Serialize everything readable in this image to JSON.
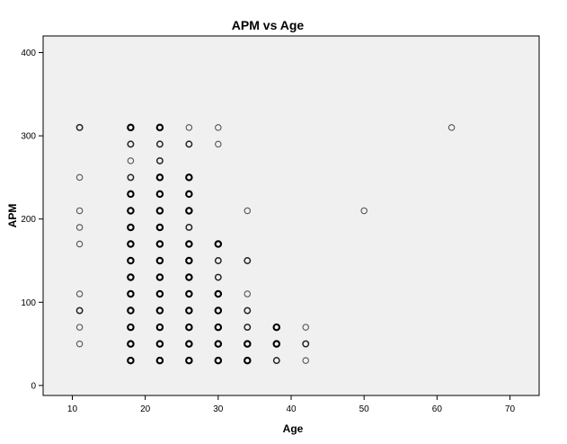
{
  "chart_data": {
    "type": "scatter",
    "title": "APM vs Age",
    "xlabel": "Age",
    "ylabel": "APM",
    "xlim": [
      6,
      74
    ],
    "ylim": [
      -12,
      420
    ],
    "xticks": [
      10,
      20,
      30,
      40,
      50,
      60,
      70
    ],
    "yticks": [
      0,
      100,
      200,
      300,
      400
    ],
    "grid": false,
    "legend": "none",
    "marker": "open-circle",
    "background": "#f0f0f0",
    "marker_color": "#000000",
    "points": [
      {
        "x": 11,
        "y": 310,
        "w": 2
      },
      {
        "x": 11,
        "y": 250,
        "w": 1
      },
      {
        "x": 11,
        "y": 210,
        "w": 1
      },
      {
        "x": 11,
        "y": 190,
        "w": 1
      },
      {
        "x": 11,
        "y": 170,
        "w": 1
      },
      {
        "x": 11,
        "y": 110,
        "w": 1
      },
      {
        "x": 11,
        "y": 90,
        "w": 2
      },
      {
        "x": 11,
        "y": 70,
        "w": 1
      },
      {
        "x": 11,
        "y": 50,
        "w": 1
      },
      {
        "x": 18,
        "y": 310,
        "w": 3
      },
      {
        "x": 18,
        "y": 290,
        "w": 2
      },
      {
        "x": 18,
        "y": 270,
        "w": 1
      },
      {
        "x": 18,
        "y": 250,
        "w": 2
      },
      {
        "x": 18,
        "y": 230,
        "w": 3
      },
      {
        "x": 18,
        "y": 210,
        "w": 3
      },
      {
        "x": 18,
        "y": 190,
        "w": 3
      },
      {
        "x": 18,
        "y": 170,
        "w": 3
      },
      {
        "x": 18,
        "y": 150,
        "w": 3
      },
      {
        "x": 18,
        "y": 130,
        "w": 3
      },
      {
        "x": 18,
        "y": 110,
        "w": 3
      },
      {
        "x": 18,
        "y": 90,
        "w": 3
      },
      {
        "x": 18,
        "y": 70,
        "w": 3
      },
      {
        "x": 18,
        "y": 50,
        "w": 3
      },
      {
        "x": 18,
        "y": 30,
        "w": 3
      },
      {
        "x": 22,
        "y": 310,
        "w": 3
      },
      {
        "x": 22,
        "y": 290,
        "w": 2
      },
      {
        "x": 22,
        "y": 270,
        "w": 2
      },
      {
        "x": 22,
        "y": 250,
        "w": 3
      },
      {
        "x": 22,
        "y": 230,
        "w": 3
      },
      {
        "x": 22,
        "y": 210,
        "w": 3
      },
      {
        "x": 22,
        "y": 190,
        "w": 3
      },
      {
        "x": 22,
        "y": 170,
        "w": 3
      },
      {
        "x": 22,
        "y": 150,
        "w": 3
      },
      {
        "x": 22,
        "y": 130,
        "w": 3
      },
      {
        "x": 22,
        "y": 110,
        "w": 3
      },
      {
        "x": 22,
        "y": 90,
        "w": 3
      },
      {
        "x": 22,
        "y": 70,
        "w": 3
      },
      {
        "x": 22,
        "y": 50,
        "w": 3
      },
      {
        "x": 22,
        "y": 30,
        "w": 3
      },
      {
        "x": 26,
        "y": 310,
        "w": 1
      },
      {
        "x": 26,
        "y": 290,
        "w": 2
      },
      {
        "x": 26,
        "y": 250,
        "w": 3
      },
      {
        "x": 26,
        "y": 230,
        "w": 3
      },
      {
        "x": 26,
        "y": 210,
        "w": 3
      },
      {
        "x": 26,
        "y": 190,
        "w": 2
      },
      {
        "x": 26,
        "y": 170,
        "w": 3
      },
      {
        "x": 26,
        "y": 150,
        "w": 3
      },
      {
        "x": 26,
        "y": 130,
        "w": 3
      },
      {
        "x": 26,
        "y": 110,
        "w": 3
      },
      {
        "x": 26,
        "y": 90,
        "w": 3
      },
      {
        "x": 26,
        "y": 70,
        "w": 3
      },
      {
        "x": 26,
        "y": 50,
        "w": 3
      },
      {
        "x": 26,
        "y": 30,
        "w": 3
      },
      {
        "x": 30,
        "y": 310,
        "w": 1
      },
      {
        "x": 30,
        "y": 290,
        "w": 1
      },
      {
        "x": 30,
        "y": 170,
        "w": 3
      },
      {
        "x": 30,
        "y": 150,
        "w": 2
      },
      {
        "x": 30,
        "y": 130,
        "w": 2
      },
      {
        "x": 30,
        "y": 110,
        "w": 3
      },
      {
        "x": 30,
        "y": 90,
        "w": 3
      },
      {
        "x": 30,
        "y": 70,
        "w": 3
      },
      {
        "x": 30,
        "y": 50,
        "w": 3
      },
      {
        "x": 30,
        "y": 30,
        "w": 3
      },
      {
        "x": 34,
        "y": 210,
        "w": 1
      },
      {
        "x": 34,
        "y": 150,
        "w": 2
      },
      {
        "x": 34,
        "y": 110,
        "w": 1
      },
      {
        "x": 34,
        "y": 90,
        "w": 2
      },
      {
        "x": 34,
        "y": 70,
        "w": 2
      },
      {
        "x": 34,
        "y": 50,
        "w": 3
      },
      {
        "x": 34,
        "y": 30,
        "w": 3
      },
      {
        "x": 38,
        "y": 70,
        "w": 3
      },
      {
        "x": 38,
        "y": 50,
        "w": 3
      },
      {
        "x": 38,
        "y": 30,
        "w": 2
      },
      {
        "x": 42,
        "y": 70,
        "w": 1
      },
      {
        "x": 42,
        "y": 50,
        "w": 2
      },
      {
        "x": 42,
        "y": 30,
        "w": 1
      },
      {
        "x": 50,
        "y": 210,
        "w": 1
      },
      {
        "x": 62,
        "y": 310,
        "w": 1
      }
    ]
  }
}
